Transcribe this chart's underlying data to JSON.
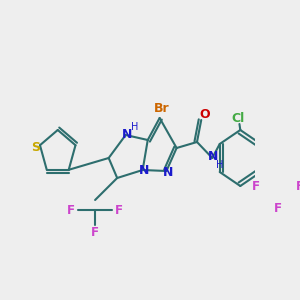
{
  "background_color": "#eeeeee",
  "bond_color": "#2d6e6e",
  "figsize": [
    3.0,
    3.0
  ],
  "dpi": 100,
  "colors": {
    "S": "#c8a800",
    "N": "#1a1acc",
    "Br": "#cc6600",
    "O": "#cc0000",
    "Cl": "#44aa44",
    "F": "#cc44cc",
    "bond": "#2d6e6e"
  }
}
